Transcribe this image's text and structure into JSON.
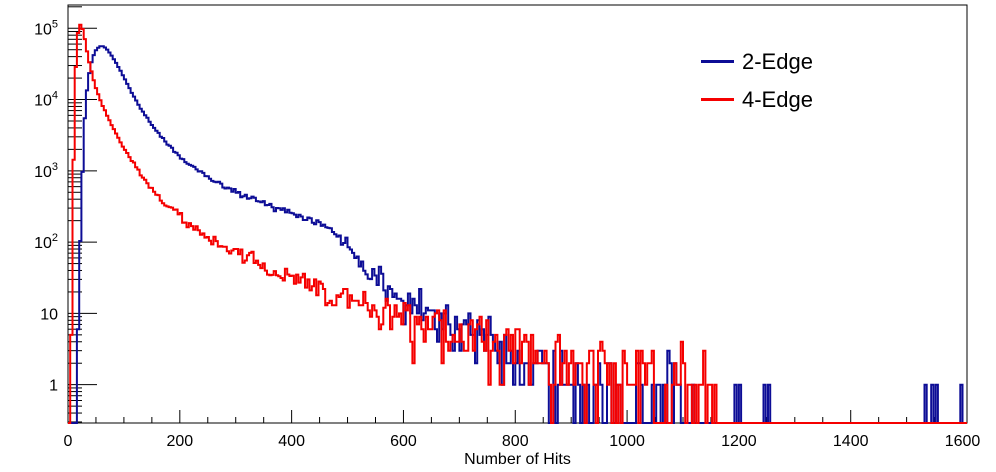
{
  "chart_data": {
    "type": "line",
    "subtype": "step-histogram",
    "title": "",
    "xlabel": "Number of Hits",
    "ylabel": "",
    "yscale": "log",
    "xlim": [
      0,
      1608
    ],
    "ylim": [
      0.29,
      212000
    ],
    "grid": false,
    "legend_position": "top-right",
    "x_major_ticks": [
      0,
      200,
      400,
      600,
      800,
      1000,
      1200,
      1400,
      1600
    ],
    "x_minor_step": 50,
    "y_major_ticks": [
      {
        "value": 1,
        "base": "1",
        "exp": ""
      },
      {
        "value": 10,
        "base": "10",
        "exp": ""
      },
      {
        "value": 100,
        "base": "10",
        "exp": "2"
      },
      {
        "value": 1000,
        "base": "10",
        "exp": "3"
      },
      {
        "value": 10000,
        "base": "10",
        "exp": "4"
      },
      {
        "value": 100000,
        "base": "10",
        "exp": "5"
      }
    ],
    "bin_width": 4,
    "frame_color": "#000000",
    "legend": [
      {
        "label": "2-Edge",
        "color": "#0d0d96"
      },
      {
        "label": "4-Edge",
        "color": "#f50000"
      }
    ],
    "series": [
      {
        "name": "2-Edge",
        "color": "#0d0d96",
        "seed": 90210,
        "peak": {
          "x": 60,
          "value": 56300
        },
        "anchors": [
          [
            15,
            0.3
          ],
          [
            16.5,
            1.5
          ],
          [
            18,
            6
          ],
          [
            20,
            25
          ],
          [
            22,
            90
          ],
          [
            24,
            300
          ],
          [
            26,
            900
          ],
          [
            28,
            2400
          ],
          [
            30,
            5500
          ],
          [
            32,
            9500
          ],
          [
            35,
            16000
          ],
          [
            38,
            23500
          ],
          [
            41,
            31000
          ],
          [
            44,
            38000
          ],
          [
            47,
            44000
          ],
          [
            50,
            49000
          ],
          [
            53,
            52500
          ],
          [
            56,
            55000
          ],
          [
            59,
            56300
          ],
          [
            62,
            56000
          ],
          [
            65,
            54500
          ],
          [
            69,
            51500
          ],
          [
            73,
            47000
          ],
          [
            77,
            42500
          ],
          [
            81,
            38000
          ],
          [
            86,
            33000
          ],
          [
            91,
            28000
          ],
          [
            96,
            23500
          ],
          [
            101,
            19800
          ],
          [
            106,
            16500
          ],
          [
            111,
            13800
          ],
          [
            117,
            11300
          ],
          [
            123,
            9300
          ],
          [
            129,
            7800
          ],
          [
            136,
            6400
          ],
          [
            143,
            5300
          ],
          [
            150,
            4450
          ],
          [
            158,
            3700
          ],
          [
            166,
            3100
          ],
          [
            175,
            2580
          ],
          [
            184,
            2160
          ],
          [
            193,
            1820
          ],
          [
            202,
            1550
          ],
          [
            212,
            1320
          ],
          [
            223,
            1130
          ],
          [
            234,
            980
          ],
          [
            246,
            855
          ],
          [
            258,
            750
          ],
          [
            271,
            655
          ],
          [
            284,
            580
          ],
          [
            298,
            515
          ],
          [
            312,
            462
          ],
          [
            326,
            415
          ],
          [
            341,
            372
          ],
          [
            356,
            335
          ],
          [
            372,
            302
          ],
          [
            388,
            272
          ],
          [
            404,
            245
          ],
          [
            420,
            222
          ],
          [
            434,
            203
          ],
          [
            446,
            185
          ],
          [
            458,
            167
          ],
          [
            468,
            150
          ],
          [
            477,
            133
          ],
          [
            486,
            115
          ],
          [
            495,
            97
          ],
          [
            504,
            80
          ],
          [
            513,
            65
          ],
          [
            522,
            50
          ],
          [
            531,
            40
          ],
          [
            540,
            33
          ],
          [
            549,
            28.5
          ],
          [
            558,
            25
          ],
          [
            568,
            22
          ],
          [
            579,
            19.3
          ],
          [
            591,
            16.8
          ],
          [
            604,
            14.9
          ],
          [
            618,
            13
          ],
          [
            633,
            11.3
          ],
          [
            648,
            9.9
          ],
          [
            663,
            8.7
          ],
          [
            678,
            7.6
          ],
          [
            693,
            6.7
          ],
          [
            708,
            5.9
          ],
          [
            724,
            5.1
          ],
          [
            740,
            4.4
          ],
          [
            757,
            3.8
          ],
          [
            775,
            3.2
          ],
          [
            794,
            2.7
          ],
          [
            814,
            2.3
          ],
          [
            835,
            1.93
          ],
          [
            857,
            1.62
          ],
          [
            880,
            1.36
          ],
          [
            905,
            1.12
          ],
          [
            932,
            0.92
          ],
          [
            961,
            0.75
          ],
          [
            992,
            0.6
          ],
          [
            1025,
            0.47
          ],
          [
            1060,
            0.36
          ],
          [
            1095,
            0.28
          ]
        ],
        "extra_spikes": [
          [
            1118,
            1
          ],
          [
            1193,
            1
          ],
          [
            1200,
            1
          ],
          [
            1245,
            1
          ],
          [
            1252,
            1
          ],
          [
            1534,
            1
          ],
          [
            1545,
            1
          ],
          [
            1555,
            1
          ],
          [
            1596,
            1
          ]
        ]
      },
      {
        "name": "4-Edge",
        "color": "#f50000",
        "seed": 31337,
        "peak": {
          "x": 22,
          "value": 112000
        },
        "anchors": [
          [
            3,
            0.3
          ],
          [
            5,
            3
          ],
          [
            7,
            40
          ],
          [
            9,
            500
          ],
          [
            11,
            4000
          ],
          [
            13,
            18000
          ],
          [
            15,
            45000
          ],
          [
            17,
            75000
          ],
          [
            19,
            98000
          ],
          [
            21,
            112000
          ],
          [
            24,
            110000
          ],
          [
            27,
            92000
          ],
          [
            30,
            70000
          ],
          [
            33,
            52000
          ],
          [
            36,
            39000
          ],
          [
            40,
            28500
          ],
          [
            44,
            21500
          ],
          [
            48,
            16500
          ],
          [
            52,
            13000
          ],
          [
            57,
            10200
          ],
          [
            62,
            8200
          ],
          [
            67,
            6700
          ],
          [
            72,
            5500
          ],
          [
            78,
            4400
          ],
          [
            84,
            3600
          ],
          [
            90,
            2900
          ],
          [
            96,
            2350
          ],
          [
            103,
            1900
          ],
          [
            110,
            1530
          ],
          [
            118,
            1220
          ],
          [
            127,
            960
          ],
          [
            136,
            760
          ],
          [
            146,
            600
          ],
          [
            157,
            470
          ],
          [
            168,
            380
          ],
          [
            180,
            310
          ],
          [
            193,
            252
          ],
          [
            207,
            205
          ],
          [
            221,
            168
          ],
          [
            236,
            138
          ],
          [
            252,
            113
          ],
          [
            268,
            95
          ],
          [
            285,
            80
          ],
          [
            302,
            68
          ],
          [
            320,
            58
          ],
          [
            340,
            49
          ],
          [
            360,
            42
          ],
          [
            382,
            36
          ],
          [
            404,
            30.5
          ],
          [
            426,
            26
          ],
          [
            450,
            22
          ],
          [
            474,
            19
          ],
          [
            500,
            16.5
          ],
          [
            526,
            14
          ],
          [
            552,
            12
          ],
          [
            578,
            10.3
          ],
          [
            605,
            8.8
          ],
          [
            632,
            7.5
          ],
          [
            660,
            6.4
          ],
          [
            688,
            5.5
          ],
          [
            716,
            4.7
          ],
          [
            746,
            4.0
          ],
          [
            776,
            3.4
          ],
          [
            808,
            2.95
          ],
          [
            840,
            2.6
          ],
          [
            874,
            2.25
          ],
          [
            910,
            2.0
          ],
          [
            948,
            1.8
          ],
          [
            988,
            1.6
          ],
          [
            1030,
            1.45
          ],
          [
            1075,
            1.2
          ],
          [
            1120,
            0.95
          ],
          [
            1152,
            0.75
          ]
        ],
        "extra_spikes": [
          [
            1157,
            1
          ]
        ]
      }
    ]
  }
}
